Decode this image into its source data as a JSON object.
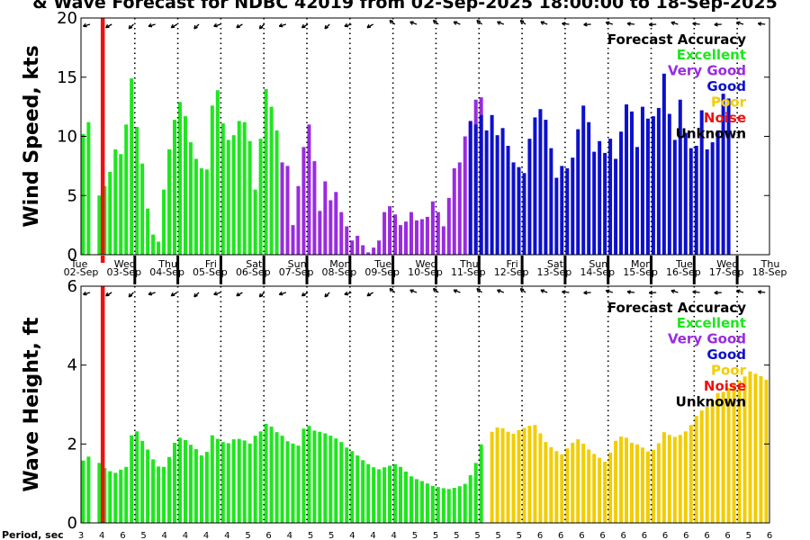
{
  "title": "& Wave Forecast for NDBC 42019 from 02-Sep-2025 18:00:00 to 18-Sep-2025",
  "day_labels": [
    "Tue",
    "Wed",
    "Thu",
    "Fri",
    "Sat",
    "Sun",
    "Mon",
    "Tue",
    "Wed",
    "Thu",
    "Fri",
    "Sat",
    "Sun",
    "Mon",
    "Tue",
    "Wed",
    "Thu"
  ],
  "date_labels": [
    "02-Sep",
    "03-Sep",
    "04-Sep",
    "05-Sep",
    "06-Sep",
    "07-Sep",
    "08-Sep",
    "09-Sep",
    "10-Sep",
    "11-Sep",
    "12-Sep",
    "13-Sep",
    "14-Sep",
    "15-Sep",
    "16-Sep",
    "17-Sep",
    "18-Sep"
  ],
  "legend": {
    "title": "Forecast Accuracy",
    "items": [
      {
        "label": "Excellent",
        "color": "#1ee61e"
      },
      {
        "label": "Very Good",
        "color": "#9a2be0"
      },
      {
        "label": "Good",
        "color": "#0d10cc"
      },
      {
        "label": "Poor",
        "color": "#f2cd00"
      },
      {
        "label": "Noise",
        "color": "#ee1111"
      },
      {
        "label": "Unknown",
        "color": "#000000"
      }
    ]
  },
  "period_label": "Period, sec",
  "period_values": [
    "3",
    "4",
    "6",
    "5",
    "4",
    "4",
    "4",
    "4",
    "5",
    "6",
    "4",
    "5",
    "5",
    "4",
    "4",
    "4",
    "5",
    "5",
    "5",
    "5",
    "5",
    "5",
    "6",
    "6",
    "6",
    "6",
    "6",
    "6",
    "6",
    "6",
    "6",
    "6",
    "5",
    "6"
  ],
  "chart_data": [
    {
      "type": "bar",
      "name": "wind",
      "ylabel": "Wind Speed, kts",
      "ylim": [
        0,
        20
      ],
      "yticks": [
        0,
        5,
        10,
        15,
        20
      ],
      "xlim_days": [
        0,
        16
      ],
      "noise_line_day": 0.5,
      "series": [
        {
          "accuracy": "Excellent",
          "start_hour": 0,
          "values": [
            10.2,
            11.2,
            0,
            5.0,
            5.8,
            7.0,
            8.9,
            8.5,
            11.0,
            14.9,
            10.8,
            7.7,
            3.9,
            1.7,
            1.1,
            5.5,
            8.9,
            11.4,
            12.9,
            11.7,
            9.5,
            8.1,
            7.3,
            7.2,
            12.6,
            13.9,
            11.1,
            9.7,
            10.1,
            11.3,
            11.2,
            9.6,
            5.5,
            9.8,
            14.0,
            12.5,
            10.5
          ]
        },
        {
          "accuracy": "Very Good",
          "start_hour": 111,
          "values": [
            7.8,
            7.5,
            2.5,
            5.8,
            9.1,
            11.0,
            7.9,
            3.7,
            6.2,
            4.6,
            5.3,
            3.6,
            2.4,
            1.2,
            1.6,
            0.8,
            0.2,
            0.6,
            1.2,
            3.6,
            4.1,
            3.4,
            2.5,
            2.8,
            3.6,
            2.9,
            3.0,
            3.2,
            4.5,
            3.6,
            2.4,
            4.8,
            7.3,
            7.8,
            10.0,
            11.2,
            13.1,
            13.3
          ]
        },
        {
          "accuracy": "Good",
          "start_hour": 216,
          "values": [
            11.3,
            11.0,
            11.8,
            10.5,
            11.8,
            10.1,
            10.7,
            9.2,
            7.8,
            7.4,
            6.9,
            9.8,
            11.6,
            12.3,
            11.4,
            9.0,
            6.5,
            7.5,
            7.3,
            8.2,
            10.6,
            12.6,
            11.2,
            8.7,
            9.6,
            8.6,
            9.8,
            8.1,
            10.4,
            12.7,
            12.1,
            9.1,
            12.5,
            11.5,
            11.7,
            12.4,
            15.3,
            11.9,
            9.7,
            13.1,
            10.3,
            9.0,
            9.2,
            12.2,
            8.9,
            9.5,
            10.5,
            13.6,
            13.2
          ]
        }
      ]
    },
    {
      "type": "bar",
      "name": "wave",
      "ylabel": "Wave Height, ft",
      "ylim": [
        0,
        6
      ],
      "yticks": [
        0,
        2,
        4,
        6
      ],
      "xlim_days": [
        0,
        16
      ],
      "noise_line_day": 0.5,
      "series": [
        {
          "accuracy": "Excellent",
          "start_hour": 0,
          "values": [
            1.58,
            1.68,
            0,
            1.52,
            1.39,
            1.31,
            1.27,
            1.35,
            1.42,
            2.22,
            2.32,
            2.08,
            1.86,
            1.61,
            1.43,
            1.42,
            1.67,
            2.03,
            2.16,
            2.1,
            1.98,
            1.87,
            1.71,
            1.8,
            2.22,
            2.13,
            2.05,
            2.02,
            2.12,
            2.13,
            2.09,
            2.01,
            2.21,
            2.32,
            2.51,
            2.44,
            2.3,
            2.21,
            2.07,
            2.01,
            1.96,
            2.39,
            2.46,
            2.34,
            2.31,
            2.27,
            2.21,
            2.14,
            2.05,
            1.91,
            1.82,
            1.71,
            1.59,
            1.49,
            1.41,
            1.36,
            1.41,
            1.45,
            1.49,
            1.42,
            1.3,
            1.18,
            1.11,
            1.06,
            1.0,
            0.94,
            0.91,
            0.88,
            0.86,
            0.89,
            0.93,
            0.99,
            1.21,
            1.52,
            1.99
          ]
        },
        {
          "accuracy": "Poor",
          "start_hour": 228,
          "values": [
            2.31,
            2.42,
            2.4,
            2.31,
            2.26,
            2.35,
            2.41,
            2.46,
            2.48,
            2.27,
            2.05,
            1.92,
            1.82,
            1.74,
            1.89,
            2.03,
            2.12,
            2.01,
            1.86,
            1.75,
            1.65,
            1.55,
            1.78,
            2.08,
            2.19,
            2.16,
            2.03,
            1.99,
            1.91,
            1.81,
            1.85,
            2.02,
            2.3,
            2.23,
            2.18,
            2.23,
            2.32,
            2.48,
            2.71,
            2.85,
            2.94,
            3.11,
            3.29,
            3.32,
            3.42,
            3.52,
            3.61,
            3.71,
            3.84,
            3.78,
            3.72,
            3.63
          ]
        }
      ]
    }
  ],
  "wind_arrows": {
    "wind": "vectors_top_of_panel",
    "wave": "vectors_top_of_panel"
  }
}
